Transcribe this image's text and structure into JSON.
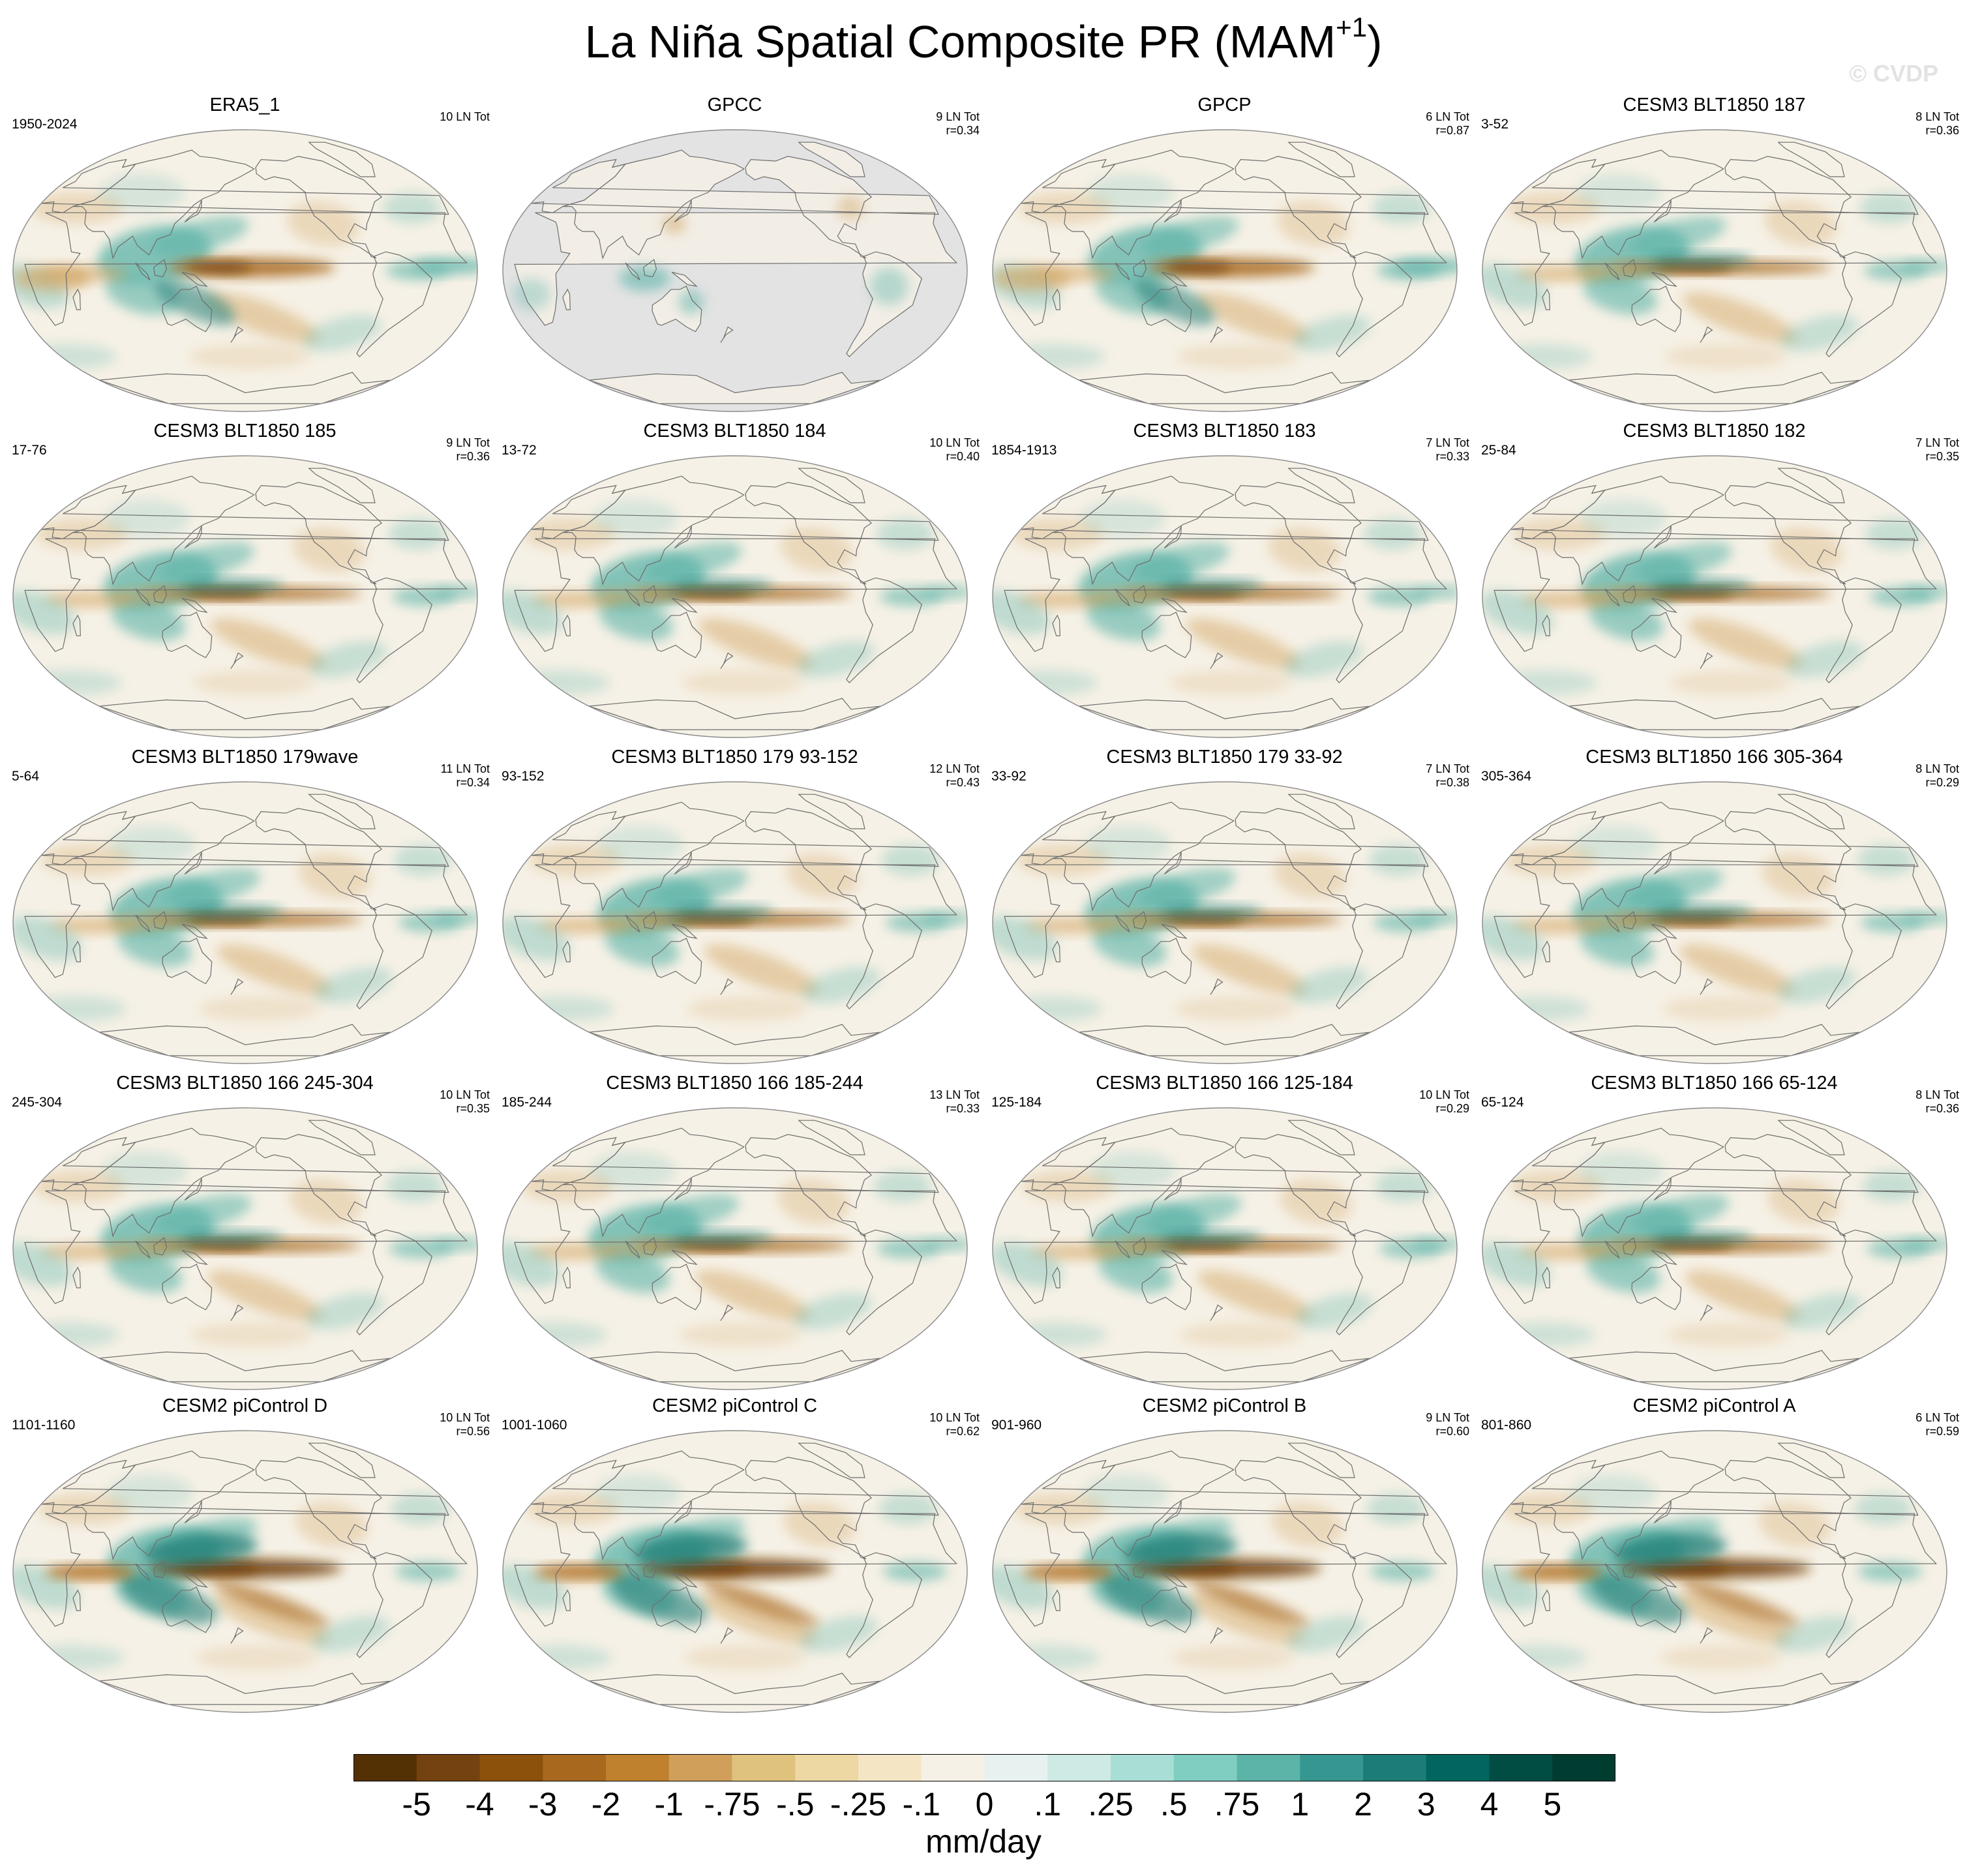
{
  "title": {
    "main": "La Niña Spatial Composite PR (MAM",
    "superscript": "+1",
    "close": ")"
  },
  "watermark": "© CVDP",
  "colorbar": {
    "units": "mm/day",
    "labels": [
      "-5",
      "-4",
      "-3",
      "-2",
      "-1",
      "-.75",
      "-.5",
      "-.25",
      "-.1",
      "0",
      ".1",
      ".25",
      ".5",
      ".75",
      "1",
      "2",
      "3",
      "4",
      "5"
    ],
    "colors": [
      "#543005",
      "#744210",
      "#8c510a",
      "#a8681e",
      "#bf812d",
      "#d0a05a",
      "#dfc27d",
      "#edd7a2",
      "#f4e6c4",
      "#f6f1e6",
      "#e7f2f0",
      "#cdeae4",
      "#a8ded5",
      "#80cdc1",
      "#5cb3a8",
      "#35978f",
      "#1b7d76",
      "#01665e",
      "#014d44",
      "#003c30"
    ]
  },
  "panels": [
    {
      "title": "ERA5_1",
      "period": "1950-2024",
      "count": "10 LN Tot",
      "r": "",
      "type": "obs"
    },
    {
      "title": "GPCC",
      "period": "",
      "count": "9 LN Tot",
      "r": "r=0.34",
      "type": "land"
    },
    {
      "title": "GPCP",
      "period": "",
      "count": "6 LN Tot",
      "r": "r=0.87",
      "type": "obs"
    },
    {
      "title": "CESM3 BLT1850 187",
      "period": "3-52",
      "count": "8 LN Tot",
      "r": "r=0.36",
      "type": "model"
    },
    {
      "title": "CESM3 BLT1850 185",
      "period": "17-76",
      "count": "9 LN Tot",
      "r": "r=0.36",
      "type": "model"
    },
    {
      "title": "CESM3 BLT1850 184",
      "period": "13-72",
      "count": "10 LN Tot",
      "r": "r=0.40",
      "type": "model"
    },
    {
      "title": "CESM3 BLT1850 183",
      "period": "1854-1913",
      "count": "7 LN Tot",
      "r": "r=0.33",
      "type": "model"
    },
    {
      "title": "CESM3 BLT1850 182",
      "period": "25-84",
      "count": "7 LN Tot",
      "r": "r=0.35",
      "type": "model"
    },
    {
      "title": "CESM3 BLT1850 179wave",
      "period": "5-64",
      "count": "11 LN Tot",
      "r": "r=0.34",
      "type": "model"
    },
    {
      "title": "CESM3 BLT1850 179 93-152",
      "period": "93-152",
      "count": "12 LN Tot",
      "r": "r=0.43",
      "type": "model"
    },
    {
      "title": "CESM3 BLT1850 179 33-92",
      "period": "33-92",
      "count": "7 LN Tot",
      "r": "r=0.38",
      "type": "model"
    },
    {
      "title": "CESM3 BLT1850 166 305-364",
      "period": "305-364",
      "count": "8 LN Tot",
      "r": "r=0.29",
      "type": "model"
    },
    {
      "title": "CESM3 BLT1850 166 245-304",
      "period": "245-304",
      "count": "10 LN Tot",
      "r": "r=0.35",
      "type": "model"
    },
    {
      "title": "CESM3 BLT1850 166 185-244",
      "period": "185-244",
      "count": "13 LN Tot",
      "r": "r=0.33",
      "type": "model"
    },
    {
      "title": "CESM3 BLT1850 166 125-184",
      "period": "125-184",
      "count": "10 LN Tot",
      "r": "r=0.29",
      "type": "model"
    },
    {
      "title": "CESM3 BLT1850 166 65-124",
      "period": "65-124",
      "count": "8 LN Tot",
      "r": "r=0.36",
      "type": "model"
    },
    {
      "title": "CESM2 piControl D",
      "period": "1101-1160",
      "count": "10 LN Tot",
      "r": "r=0.56",
      "type": "strong"
    },
    {
      "title": "CESM2 piControl C",
      "period": "1001-1060",
      "count": "10 LN Tot",
      "r": "r=0.62",
      "type": "strong"
    },
    {
      "title": "CESM2 piControl B",
      "period": "901-960",
      "count": "9 LN Tot",
      "r": "r=0.60",
      "type": "strong"
    },
    {
      "title": "CESM2 piControl A",
      "period": "801-860",
      "count": "6 LN Tot",
      "r": "r=0.59",
      "type": "strong"
    }
  ]
}
